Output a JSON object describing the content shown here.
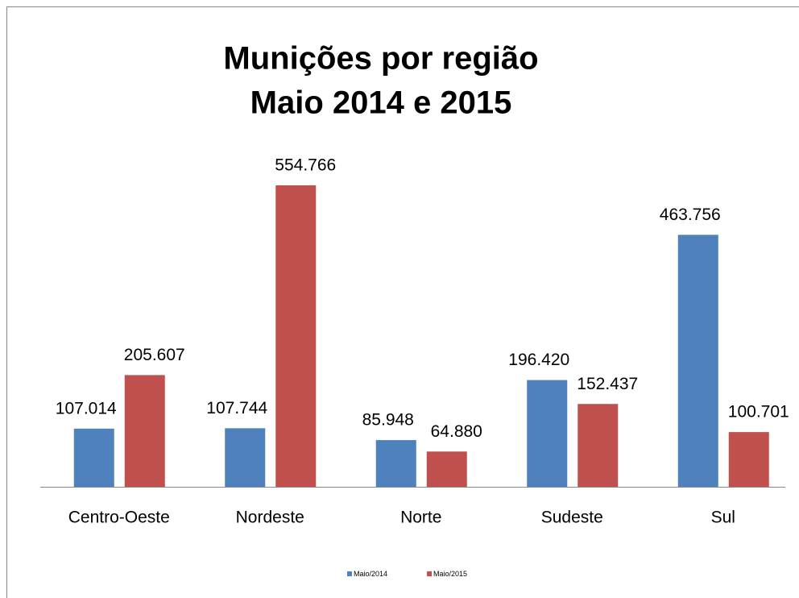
{
  "chart_data": {
    "type": "bar",
    "title": [
      "Munições por região",
      "Maio 2014 e 2015"
    ],
    "categories": [
      "Centro-Oeste",
      "Nordeste",
      "Norte",
      "Sudeste",
      "Sul"
    ],
    "series": [
      {
        "name": "Maio/2014",
        "color": "#4f81bd",
        "values": [
          107014,
          107744,
          85948,
          196420,
          463756
        ],
        "value_labels": [
          "107.014",
          "107.744",
          "85.948",
          "196.420",
          "463.756"
        ]
      },
      {
        "name": "Maio/2015",
        "color": "#c0504d",
        "values": [
          205607,
          554766,
          64880,
          152437,
          100701
        ],
        "value_labels": [
          "205.607",
          "554.766",
          "64.880",
          "152.437",
          "100.701"
        ]
      }
    ],
    "legend": "bottom"
  }
}
